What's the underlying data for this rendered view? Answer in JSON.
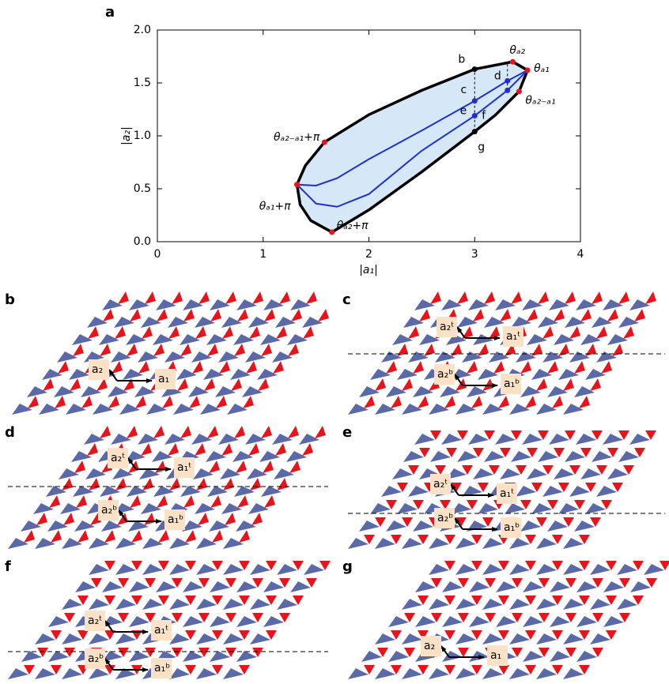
{
  "chart_data": {
    "type": "region",
    "panel_label": "a",
    "xlabel": "|a₁|",
    "ylabel": "|a₂|",
    "xlim": [
      0,
      4
    ],
    "ylim": [
      0,
      2
    ],
    "xticks": [
      0,
      1,
      2,
      3,
      4
    ],
    "yticks": [
      {
        "value": 0,
        "label": "0.0"
      },
      {
        "value": 0.5,
        "label": "0.5"
      },
      {
        "value": 1,
        "label": "1.0"
      },
      {
        "value": 1.5,
        "label": "1.5"
      },
      {
        "value": 2,
        "label": "2.0"
      }
    ],
    "region": {
      "color": "#d6e8f8",
      "x": [
        1.32,
        1.4,
        1.58,
        2.0,
        2.5,
        3.0,
        3.36,
        3.5,
        3.42,
        3.2,
        3.0,
        2.5,
        2.0,
        1.65,
        1.45,
        1.35,
        1.32
      ],
      "y": [
        0.54,
        0.72,
        0.94,
        1.2,
        1.43,
        1.63,
        1.7,
        1.62,
        1.42,
        1.2,
        1.04,
        0.66,
        0.3,
        0.09,
        0.2,
        0.35,
        0.54
      ]
    },
    "series": [
      {
        "color": "#1f2fd6",
        "x": [
          1.32,
          1.5,
          1.7,
          2.0,
          2.5,
          3.0,
          3.31,
          3.5
        ],
        "y": [
          0.54,
          0.53,
          0.6,
          0.78,
          1.05,
          1.33,
          1.52,
          1.62
        ]
      },
      {
        "color": "#1f2fd6",
        "x": [
          1.32,
          1.5,
          1.7,
          2.0,
          2.5,
          3.0,
          3.31,
          3.5
        ],
        "y": [
          0.54,
          0.36,
          0.33,
          0.45,
          0.86,
          1.19,
          1.43,
          1.62
        ]
      }
    ],
    "points": [
      {
        "label": "θₐ₂",
        "x": 3.36,
        "y": 1.7,
        "color": "#e8141c"
      },
      {
        "label": "θₐ₁",
        "x": 3.5,
        "y": 1.62,
        "color": "#e8141c"
      },
      {
        "label": "θₐ₂₋ₐ₁",
        "x": 3.42,
        "y": 1.42,
        "color": "#e8141c"
      },
      {
        "label": "θₐ₂₋ₐ₁+π",
        "x": 1.58,
        "y": 0.94,
        "color": "#e8141c"
      },
      {
        "label": "θₐ₁+π",
        "x": 1.32,
        "y": 0.54,
        "color": "#e8141c"
      },
      {
        "label": "θₐ₂+π",
        "x": 1.65,
        "y": 0.09,
        "color": "#e8141c"
      },
      {
        "label": "b",
        "x": 3.0,
        "y": 1.63,
        "color": "#000000"
      },
      {
        "label": "c",
        "x": 3.0,
        "y": 1.33,
        "color": "#1f2fd6"
      },
      {
        "label": "d",
        "x": 3.31,
        "y": 1.52,
        "color": "#1f2fd6"
      },
      {
        "label": "e",
        "x": 3.0,
        "y": 1.19,
        "color": "#1f2fd6"
      },
      {
        "label": "f",
        "x": 3.31,
        "y": 1.43,
        "color": "#1f2fd6"
      },
      {
        "label": "g",
        "x": 3.0,
        "y": 1.04,
        "color": "#000000"
      }
    ]
  },
  "panels": [
    {
      "label": "b",
      "vectors": [
        "a₂",
        "a₁"
      ]
    },
    {
      "label": "c",
      "vectors": [
        "a₂ᵗ",
        "a₁ᵗ",
        "a₂ᵇ",
        "a₁ᵇ"
      ]
    },
    {
      "label": "d",
      "vectors": [
        "a₂ᵗ",
        "a₁ᵗ",
        "a₂ᵇ",
        "a₁ᵇ"
      ]
    },
    {
      "label": "e",
      "vectors": [
        "a₂ᵗ",
        "a₁ᵗ",
        "a₂ᵇ",
        "a₁ᵇ"
      ]
    },
    {
      "label": "f",
      "vectors": [
        "a₂ᵗ",
        "a₁ᵗ",
        "a₂ᵇ",
        "a₁ᵇ"
      ]
    },
    {
      "label": "g",
      "vectors": [
        "a₂",
        "a₁"
      ]
    }
  ]
}
